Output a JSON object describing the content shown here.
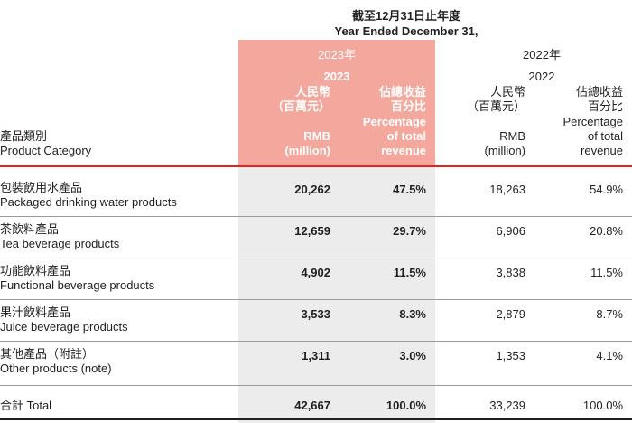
{
  "header": {
    "period_zh": "截至12月31日止年度",
    "period_en": "Year Ended December 31,"
  },
  "years": {
    "y2023_label": "2023年",
    "y2023": "2023",
    "y2022_label": "2022年",
    "y2022": "2022"
  },
  "columns": {
    "category_zh": "產品類別",
    "category_en": "Product Category",
    "rmb_zh_1": "人民幣",
    "rmb_zh_2": "（百萬元）",
    "rmb_en_1": "RMB",
    "rmb_en_2": "(million)",
    "pct_zh_1": "佔總收益",
    "pct_zh_2": "百分比",
    "pct_en_1": "Percentage",
    "pct_en_2": "of total",
    "pct_en_3": "revenue"
  },
  "rows": [
    {
      "zh": "包裝飲用水產品",
      "en": "Packaged drinking water products",
      "rmb_2023": "20,262",
      "pct_2023": "47.5%",
      "rmb_2022": "18,263",
      "pct_2022": "54.9%"
    },
    {
      "zh": "茶飲料產品",
      "en": "Tea beverage products",
      "rmb_2023": "12,659",
      "pct_2023": "29.7%",
      "rmb_2022": "6,906",
      "pct_2022": "20.8%"
    },
    {
      "zh": "功能飲料產品",
      "en": "Functional beverage products",
      "rmb_2023": "4,902",
      "pct_2023": "11.5%",
      "rmb_2022": "3,838",
      "pct_2022": "11.5%"
    },
    {
      "zh": "果汁飲料產品",
      "en": "Juice beverage products",
      "rmb_2023": "3,533",
      "pct_2023": "8.3%",
      "rmb_2022": "2,879",
      "pct_2022": "8.7%"
    },
    {
      "zh": "其他產品（附註）",
      "en": "Other products (note)",
      "rmb_2023": "1,311",
      "pct_2023": "3.0%",
      "rmb_2022": "1,353",
      "pct_2022": "4.1%"
    }
  ],
  "total": {
    "label": "合計 Total",
    "rmb_2023": "42,667",
    "pct_2023": "100.0%",
    "rmb_2022": "33,239",
    "pct_2022": "100.0%"
  },
  "colors": {
    "highlight_2023_header": "#f4a79c",
    "highlight_2023_body": "#ececec",
    "rule_red": "#e52222",
    "text": "#231f20"
  }
}
